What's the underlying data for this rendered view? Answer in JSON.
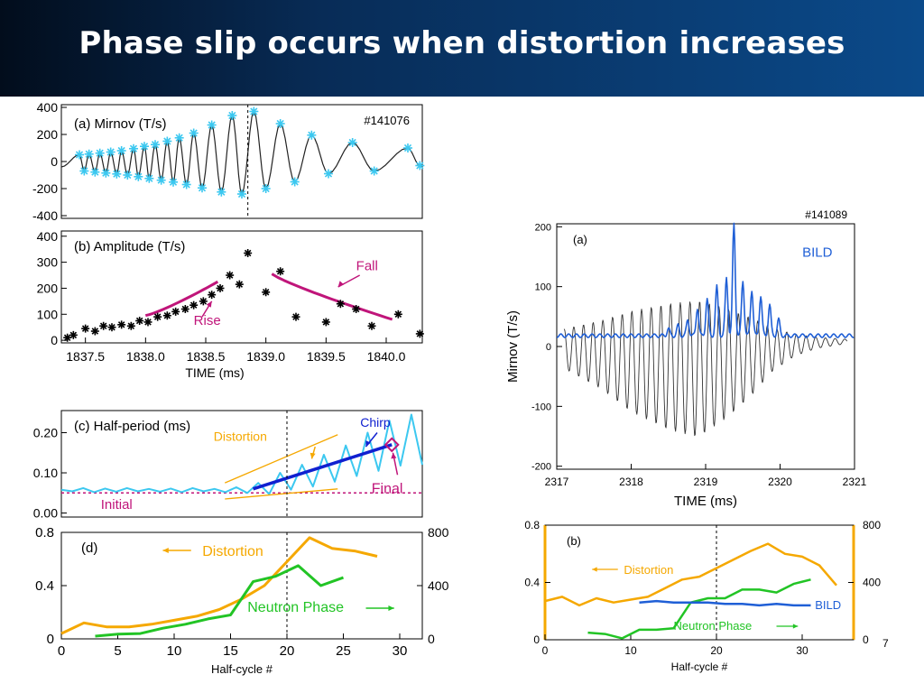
{
  "slide": {
    "title": "Phase slip occurs when distortion increases",
    "page_number": "7",
    "colors": {
      "title_bg": "#0b4a8a",
      "distortion": "#f5a800",
      "neutron": "#22c425",
      "bild": "#1f5fd6",
      "chirp": "#1020d0",
      "magenta": "#c0157a",
      "cyan": "#3cc8f0"
    }
  },
  "chart_data": [
    {
      "id": "a-mirnov",
      "type": "line",
      "panel_label": "(a) Mirnov (T/s)",
      "shot": "#141076",
      "ylim": [
        -420,
        420
      ],
      "yticks": [
        400,
        200,
        0,
        -200,
        -400
      ],
      "xlim": [
        1837.3,
        1840.3
      ],
      "vline_x": 1838.85,
      "peaks": [
        [
          1837.45,
          50
        ],
        [
          1837.53,
          55
        ],
        [
          1837.62,
          62
        ],
        [
          1837.71,
          70
        ],
        [
          1837.8,
          80
        ],
        [
          1837.9,
          95
        ],
        [
          1837.99,
          112
        ],
        [
          1838.08,
          125
        ],
        [
          1838.18,
          150
        ],
        [
          1838.28,
          175
        ],
        [
          1838.4,
          210
        ],
        [
          1838.55,
          270
        ],
        [
          1838.72,
          340
        ],
        [
          1838.9,
          370
        ],
        [
          1839.12,
          280
        ],
        [
          1839.38,
          195
        ],
        [
          1839.72,
          140
        ],
        [
          1840.18,
          100
        ]
      ],
      "troughs": [
        [
          1837.49,
          -70
        ],
        [
          1837.58,
          -78
        ],
        [
          1837.67,
          -85
        ],
        [
          1837.76,
          -92
        ],
        [
          1837.85,
          -100
        ],
        [
          1837.94,
          -112
        ],
        [
          1838.03,
          -125
        ],
        [
          1838.13,
          -138
        ],
        [
          1838.23,
          -152
        ],
        [
          1838.34,
          -170
        ],
        [
          1838.47,
          -195
        ],
        [
          1838.63,
          -225
        ],
        [
          1838.8,
          -240
        ],
        [
          1839.0,
          -200
        ],
        [
          1839.24,
          -150
        ],
        [
          1839.52,
          -90
        ],
        [
          1839.9,
          -70
        ],
        [
          1840.28,
          -30
        ]
      ]
    },
    {
      "id": "b-amplitude",
      "type": "scatter",
      "panel_label": "(b) Amplitude (T/s)",
      "xlabel": "TIME (ms)",
      "xticks": [
        1837.5,
        1838.0,
        1838.5,
        1839.0,
        1839.5,
        1840.0
      ],
      "xtick_labels": [
        "1837.5",
        "1838.0",
        "1838.5",
        "1839.0",
        "1839.5",
        "1840.0"
      ],
      "yticks": [
        400,
        300,
        200,
        100,
        0
      ],
      "xlim": [
        1837.3,
        1840.3
      ],
      "ylim": [
        -10,
        420
      ],
      "points": [
        [
          1837.35,
          10
        ],
        [
          1837.4,
          20
        ],
        [
          1837.5,
          45
        ],
        [
          1837.58,
          35
        ],
        [
          1837.65,
          55
        ],
        [
          1837.72,
          50
        ],
        [
          1837.8,
          60
        ],
        [
          1837.88,
          55
        ],
        [
          1837.95,
          75
        ],
        [
          1838.02,
          70
        ],
        [
          1838.1,
          90
        ],
        [
          1838.18,
          95
        ],
        [
          1838.25,
          110
        ],
        [
          1838.33,
          120
        ],
        [
          1838.4,
          135
        ],
        [
          1838.48,
          150
        ],
        [
          1838.55,
          175
        ],
        [
          1838.62,
          200
        ],
        [
          1838.7,
          250
        ],
        [
          1838.78,
          215
        ],
        [
          1838.85,
          335
        ],
        [
          1839.0,
          185
        ],
        [
          1839.12,
          265
        ],
        [
          1839.25,
          90
        ],
        [
          1839.5,
          70
        ],
        [
          1839.62,
          140
        ],
        [
          1839.75,
          120
        ],
        [
          1839.88,
          55
        ],
        [
          1840.1,
          100
        ],
        [
          1840.28,
          25
        ]
      ],
      "annotations": [
        {
          "text": "Rise",
          "color": "#c0157a"
        },
        {
          "text": "Fall",
          "color": "#c0157a"
        }
      ]
    },
    {
      "id": "c-half-period",
      "type": "line",
      "panel_label": "(c) Half-period (ms)",
      "yticks": [
        0.2,
        0.1,
        0.0
      ],
      "ytick_labels": [
        "0.20",
        "0.10",
        "0.00"
      ],
      "xlim": [
        0,
        32
      ],
      "ylim": [
        -0.01,
        0.255
      ],
      "series_values": [
        0.058,
        0.054,
        0.062,
        0.052,
        0.061,
        0.053,
        0.062,
        0.054,
        0.06,
        0.053,
        0.061,
        0.052,
        0.062,
        0.054,
        0.06,
        0.052,
        0.064,
        0.05,
        0.075,
        0.047,
        0.1,
        0.058,
        0.12,
        0.066,
        0.145,
        0.078,
        0.168,
        0.092,
        0.2,
        0.105,
        0.23,
        0.118,
        0.245,
        0.12
      ],
      "annotations": [
        {
          "text": "Initial",
          "color": "#c0157a"
        },
        {
          "text": "Distortion",
          "color": "#f5a800"
        },
        {
          "text": "Chirp",
          "color": "#1020d0"
        },
        {
          "text": "Final",
          "color": "#c0157a"
        }
      ]
    },
    {
      "id": "d-distortion-neutron",
      "type": "line",
      "panel_label": "(d)",
      "xlabel": "Half-cycle #",
      "xticks": [
        0,
        5,
        10,
        15,
        20,
        25,
        30
      ],
      "yticks_left": [
        0.8,
        0.4,
        0
      ],
      "ytick_left_labels": [
        "0.8",
        "0.4",
        "0"
      ],
      "yticks_right": [
        800,
        400,
        0
      ],
      "xlim": [
        0,
        32
      ],
      "ylim_left": [
        0,
        0.8
      ],
      "ylim_right": [
        0,
        800
      ],
      "series": [
        {
          "name": "Distortion",
          "axis": "left",
          "x": [
            0,
            2,
            4,
            6,
            8,
            10,
            12,
            14,
            16,
            18,
            20,
            22,
            24,
            26,
            28
          ],
          "values": [
            0.04,
            0.12,
            0.09,
            0.09,
            0.11,
            0.14,
            0.17,
            0.22,
            0.3,
            0.4,
            0.58,
            0.76,
            0.68,
            0.66,
            0.62
          ]
        },
        {
          "name": "Neutron Phase",
          "axis": "right",
          "x": [
            3,
            5,
            7,
            9,
            11,
            13,
            15,
            17,
            19,
            21,
            23,
            25
          ],
          "values": [
            20,
            35,
            40,
            80,
            110,
            150,
            180,
            430,
            470,
            550,
            400,
            460
          ]
        }
      ],
      "vline_x": 20
    },
    {
      "id": "r-a-mirnov-bild",
      "type": "line",
      "panel_label": "(a)",
      "shot": "#141089",
      "ylabel": "Mirnov (T/s)",
      "xlabel": "TIME (ms)",
      "xticks": [
        2317,
        2318,
        2319,
        2320,
        2321
      ],
      "yticks": [
        200,
        100,
        0,
        -100,
        -200
      ],
      "xlim": [
        2317,
        2321
      ],
      "ylim": [
        -205,
        205
      ],
      "series": [
        {
          "name": "BILD"
        }
      ],
      "mirnov_start": 2317.1,
      "mirnov_period": 0.13,
      "mirnov_envelope": [
        [
          2317.1,
          55
        ],
        [
          2317.6,
          95
        ],
        [
          2318.0,
          140
        ],
        [
          2318.5,
          175
        ],
        [
          2318.9,
          190
        ],
        [
          2319.3,
          150
        ],
        [
          2319.6,
          110
        ],
        [
          2319.9,
          60
        ],
        [
          2320.2,
          30
        ],
        [
          2320.5,
          15
        ]
      ],
      "bild_base": 18,
      "bild_peaks": [
        [
          2318.5,
          30
        ],
        [
          2318.63,
          35
        ],
        [
          2318.76,
          45
        ],
        [
          2318.89,
          65
        ],
        [
          2319.02,
          80
        ],
        [
          2319.15,
          100
        ],
        [
          2319.28,
          115
        ],
        [
          2319.38,
          205
        ],
        [
          2319.5,
          110
        ],
        [
          2319.62,
          95
        ],
        [
          2319.74,
          85
        ],
        [
          2319.86,
          70
        ],
        [
          2319.98,
          45
        ]
      ]
    },
    {
      "id": "r-b-distortion-neutron-bild",
      "type": "line",
      "panel_label": "(b)",
      "xlabel": "Half-cycle #",
      "xticks": [
        0,
        10,
        20,
        30
      ],
      "yticks_left": [
        0.8,
        0.4,
        0
      ],
      "ytick_left_labels": [
        "0.8",
        "0.4",
        "0"
      ],
      "yticks_right": [
        800,
        400,
        0
      ],
      "xlim": [
        0,
        36
      ],
      "ylim_left": [
        0,
        0.8
      ],
      "ylim_right": [
        0,
        800
      ],
      "vline_x": 20,
      "series": [
        {
          "name": "Distortion",
          "axis": "left",
          "x": [
            0,
            2,
            4,
            6,
            8,
            10,
            12,
            14,
            16,
            18,
            20,
            22,
            24,
            26,
            28,
            30,
            32,
            34
          ],
          "values": [
            0.27,
            0.3,
            0.24,
            0.29,
            0.26,
            0.28,
            0.3,
            0.36,
            0.42,
            0.44,
            0.5,
            0.56,
            0.62,
            0.67,
            0.6,
            0.58,
            0.52,
            0.38
          ]
        },
        {
          "name": "Neutron Phase",
          "axis": "right",
          "x": [
            5,
            7,
            9,
            11,
            13,
            15,
            17,
            19,
            21,
            23,
            25,
            27,
            29,
            31
          ],
          "values": [
            50,
            40,
            10,
            70,
            70,
            80,
            260,
            290,
            290,
            350,
            350,
            330,
            390,
            420
          ]
        },
        {
          "name": "BILD",
          "axis": "left",
          "x": [
            11,
            13,
            15,
            17,
            19,
            21,
            23,
            25,
            27,
            29,
            31
          ],
          "values": [
            0.26,
            0.27,
            0.26,
            0.26,
            0.26,
            0.25,
            0.25,
            0.24,
            0.25,
            0.24,
            0.24
          ]
        }
      ]
    }
  ]
}
